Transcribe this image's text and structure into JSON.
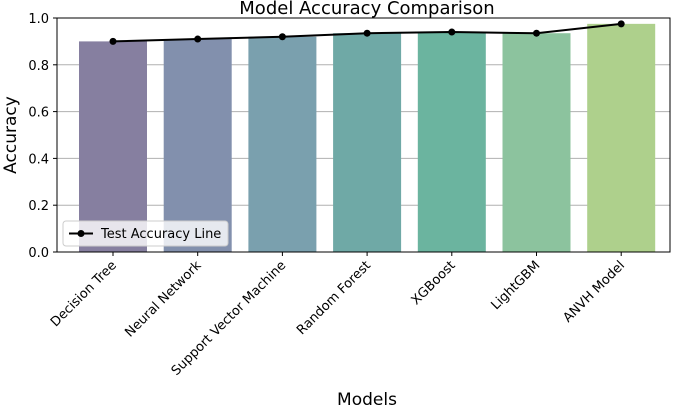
{
  "chart_data": {
    "type": "bar",
    "title": "Model Accuracy Comparison",
    "x_label": "Models",
    "y_label": "Accuracy",
    "categories": [
      "Decision Tree",
      "Neural Network",
      "Support Vector Machine",
      "Random Forest",
      "XGBoost",
      "LightGBM",
      "ANVH Model"
    ],
    "values": [
      0.9,
      0.91,
      0.92,
      0.935,
      0.94,
      0.935,
      0.975
    ],
    "colors": [
      "#867fa0",
      "#8290ad",
      "#7aa0ae",
      "#6fa9a6",
      "#6bb49f",
      "#8cc39e",
      "#aed08c"
    ],
    "line": {
      "name": "Test Accuracy Line",
      "color": "#000000",
      "values": [
        0.9,
        0.91,
        0.92,
        0.935,
        0.94,
        0.935,
        0.975
      ]
    },
    "ylim": [
      0,
      1
    ],
    "yticks": [
      {
        "value": 0,
        "label": "0.0"
      },
      0.2,
      0.4,
      0.6,
      0.8,
      {
        "value": 1,
        "label": "1.0"
      }
    ],
    "grid": true,
    "legend": "lower left"
  }
}
